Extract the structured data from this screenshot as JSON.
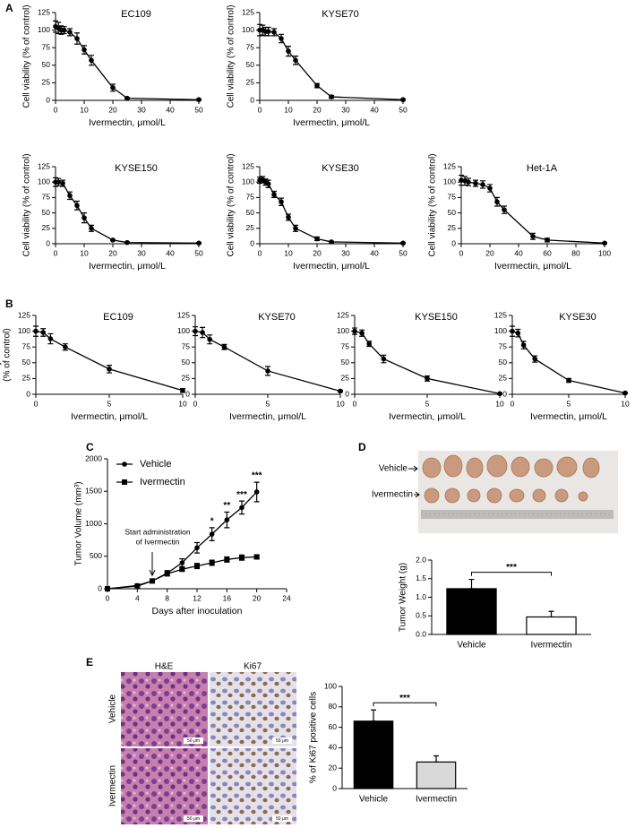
{
  "panels": [
    "A",
    "B",
    "C",
    "D",
    "E"
  ],
  "tumor_photo": {
    "rows": [
      "Vehicle",
      "Ivermectin"
    ]
  },
  "histology": {
    "columns": [
      "H&E",
      "Ki67"
    ],
    "rows": [
      "Vehicle",
      "Ivermectin"
    ],
    "scale_bar": "50 μm"
  },
  "chart_data": [
    {
      "type": "line",
      "title": "EC109",
      "xlabel": "Ivermectin, μmol/L",
      "ylabel": "Cell viability (% of  control)",
      "marker": "circle",
      "color": "#000000",
      "x": [
        0,
        1,
        2,
        3,
        5,
        7.5,
        10,
        12.5,
        20,
        25,
        50
      ],
      "values": [
        105,
        103,
        100,
        100,
        97,
        88,
        72,
        57,
        18,
        3,
        1
      ],
      "errors": [
        8,
        8,
        6,
        5,
        5,
        8,
        6,
        7,
        5,
        1,
        1
      ],
      "xlim": [
        0,
        50
      ],
      "xticks": [
        0,
        10,
        20,
        30,
        40,
        50
      ],
      "ylim": [
        0,
        125
      ],
      "yticks": [
        0,
        25,
        50,
        75,
        100,
        125
      ]
    },
    {
      "type": "line",
      "title": "KYSE70",
      "xlabel": "Ivermectin, μmol/L",
      "ylabel": "Cell viability (% of  control)",
      "marker": "circle",
      "color": "#000000",
      "x": [
        0,
        1,
        2,
        3,
        5,
        7.5,
        10,
        12.5,
        20,
        25,
        50
      ],
      "values": [
        100,
        100,
        98,
        98,
        97,
        88,
        70,
        57,
        21,
        5,
        1
      ],
      "errors": [
        8,
        7,
        6,
        6,
        5,
        6,
        7,
        6,
        3,
        2,
        1
      ],
      "xlim": [
        0,
        50
      ],
      "xticks": [
        0,
        10,
        20,
        30,
        40,
        50
      ],
      "ylim": [
        0,
        125
      ],
      "yticks": [
        0,
        25,
        50,
        75,
        100,
        125
      ]
    },
    {
      "type": "line",
      "title": "KYSE150",
      "xlabel": "Ivermectin, μmol/L",
      "ylabel": "Cell viability (% of  control)",
      "marker": "circle",
      "color": "#000000",
      "x": [
        0,
        1,
        2.5,
        5,
        7.5,
        10,
        12.5,
        20,
        25,
        50
      ],
      "values": [
        100,
        100,
        98,
        78,
        62,
        42,
        25,
        6,
        2,
        1
      ],
      "errors": [
        7,
        6,
        5,
        6,
        7,
        8,
        5,
        1,
        1,
        1
      ],
      "xlim": [
        0,
        50
      ],
      "xticks": [
        0,
        10,
        20,
        30,
        40,
        50
      ],
      "ylim": [
        0,
        125
      ],
      "yticks": [
        0,
        25,
        50,
        75,
        100,
        125
      ]
    },
    {
      "type": "line",
      "title": "KYSE30",
      "xlabel": "Ivermectin, μmol/L",
      "ylabel": "Cell viability (% of  control)",
      "marker": "circle",
      "color": "#000000",
      "x": [
        0,
        1,
        2,
        3,
        5,
        7.5,
        10,
        12.5,
        20,
        25,
        50
      ],
      "values": [
        103,
        104,
        100,
        97,
        80,
        68,
        43,
        25,
        8,
        3,
        1
      ],
      "errors": [
        5,
        5,
        5,
        6,
        5,
        6,
        5,
        5,
        3,
        1,
        1
      ],
      "xlim": [
        0,
        50
      ],
      "xticks": [
        0,
        10,
        20,
        30,
        40,
        50
      ],
      "ylim": [
        0,
        125
      ],
      "yticks": [
        0,
        25,
        50,
        75,
        100,
        125
      ]
    },
    {
      "type": "line",
      "title": "Het-1A",
      "xlabel": "Ivermectin, μmol/L",
      "ylabel": "Cell viability (% of  control)",
      "marker": "circle",
      "color": "#000000",
      "x": [
        0,
        2.5,
        5,
        10,
        15,
        20,
        25,
        30,
        50,
        60,
        100
      ],
      "values": [
        103,
        102,
        100,
        98,
        96,
        90,
        68,
        55,
        12,
        6,
        1
      ],
      "errors": [
        8,
        7,
        6,
        5,
        6,
        6,
        7,
        6,
        5,
        3,
        1
      ],
      "xlim": [
        0,
        100
      ],
      "xticks": [
        0,
        20,
        40,
        60,
        80,
        100
      ],
      "ylim": [
        0,
        125
      ],
      "yticks": [
        0,
        25,
        50,
        75,
        100,
        125
      ]
    },
    {
      "type": "line",
      "title": "EC109",
      "xlabel": "Ivermectin, μmol/L",
      "ylabel": [
        "Colony formation",
        "(% of  control)"
      ],
      "marker": "circle",
      "color": "#000000",
      "x": [
        0,
        0.5,
        1,
        2,
        5,
        10
      ],
      "values": [
        100,
        98,
        88,
        75,
        40,
        6
      ],
      "errors": [
        8,
        6,
        8,
        5,
        6,
        3
      ],
      "xlim": [
        0,
        10
      ],
      "xticks": [
        0,
        5,
        10
      ],
      "ylim": [
        0,
        125
      ],
      "yticks": [
        0,
        25,
        50,
        75,
        100,
        125
      ]
    },
    {
      "type": "line",
      "title": "KYSE70",
      "xlabel": "Ivermectin, μmol/L",
      "marker": "circle",
      "color": "#000000",
      "x": [
        0,
        0.5,
        1,
        2,
        5,
        10
      ],
      "values": [
        100,
        98,
        87,
        75,
        37,
        5
      ],
      "errors": [
        7,
        8,
        7,
        4,
        7,
        1
      ],
      "xlim": [
        0,
        10
      ],
      "xticks": [
        0,
        5,
        10
      ],
      "ylim": [
        0,
        125
      ],
      "yticks": [
        0,
        25,
        50,
        75,
        100,
        125
      ]
    },
    {
      "type": "line",
      "title": "KYSE150",
      "xlabel": "Ivermectin, μmol/L",
      "marker": "circle",
      "color": "#000000",
      "x": [
        0,
        0.5,
        1,
        2,
        5,
        10
      ],
      "values": [
        100,
        97,
        80,
        56,
        25,
        1
      ],
      "errors": [
        5,
        5,
        4,
        6,
        4,
        1
      ],
      "xlim": [
        0,
        10
      ],
      "xticks": [
        0,
        5,
        10
      ],
      "ylim": [
        0,
        125
      ],
      "yticks": [
        0,
        25,
        50,
        75,
        100,
        125
      ]
    },
    {
      "type": "line",
      "title": "KYSE30",
      "xlabel": "Ivermectin, μmol/L",
      "marker": "circle",
      "color": "#000000",
      "x": [
        0,
        0.5,
        1,
        2,
        5,
        10
      ],
      "values": [
        100,
        97,
        78,
        56,
        22,
        2
      ],
      "errors": [
        8,
        6,
        6,
        5,
        3,
        1
      ],
      "xlim": [
        0,
        10
      ],
      "xticks": [
        0,
        5,
        10
      ],
      "ylim": [
        0,
        125
      ],
      "yticks": [
        0,
        25,
        50,
        75,
        100,
        125
      ]
    },
    {
      "type": "line",
      "xlabel": "Days after inoculation",
      "ylabel": "Tumor Volume (mm³)",
      "legend": "top-left",
      "x": [
        0,
        4,
        6,
        8,
        10,
        12,
        14,
        16,
        18,
        20
      ],
      "series": [
        {
          "name": "Vehicle",
          "marker": "circle",
          "color": "#000000",
          "values": [
            0,
            50,
            120,
            240,
            400,
            630,
            840,
            1060,
            1250,
            1490
          ],
          "errors": [
            0,
            20,
            30,
            40,
            60,
            80,
            100,
            120,
            100,
            150
          ]
        },
        {
          "name": "Ivermectin",
          "marker": "square",
          "color": "#000000",
          "values": [
            0,
            40,
            120,
            230,
            300,
            350,
            400,
            450,
            480,
            490
          ],
          "errors": [
            0,
            10,
            20,
            30,
            30,
            40,
            40,
            40,
            40,
            30
          ]
        }
      ],
      "annotations": [
        {
          "text": "*",
          "x": 14
        },
        {
          "text": "**",
          "x": 16
        },
        {
          "text": "***",
          "x": 18
        },
        {
          "text": "***",
          "x": 20
        }
      ],
      "arrow_note": {
        "text": [
          "Start administration",
          "of Ivermectin"
        ],
        "x": 6
      },
      "xlim": [
        0,
        24
      ],
      "xticks": [
        0,
        4,
        8,
        12,
        16,
        20,
        24
      ],
      "ylim": [
        0,
        2000
      ],
      "yticks": [
        0,
        500,
        1000,
        1500,
        2000
      ]
    },
    {
      "type": "bar",
      "ylabel": "Tumor Weight (g)",
      "categories": [
        "Vehicle",
        "Ivermectin"
      ],
      "values": [
        1.23,
        0.47
      ],
      "errors": [
        0.25,
        0.15
      ],
      "colors": [
        "#000000",
        "#ffffff"
      ],
      "significance": "***",
      "ylim": [
        0,
        2
      ],
      "yticks": [
        {
          "value": 0,
          "label": "0.0"
        },
        0.5,
        {
          "value": 1,
          "label": "1.0"
        },
        1.5,
        {
          "value": 2,
          "label": "2.0"
        }
      ]
    },
    {
      "type": "bar",
      "ylabel": "% of Ki67 positive cells",
      "categories": [
        "Vehicle",
        "Ivermectin"
      ],
      "values": [
        66,
        26
      ],
      "errors": [
        11,
        6
      ],
      "colors": [
        "#000000",
        "#d9d9d9"
      ],
      "significance": "***",
      "ylim": [
        0,
        100
      ],
      "yticks": [
        0,
        20,
        40,
        60,
        80,
        100
      ]
    }
  ]
}
